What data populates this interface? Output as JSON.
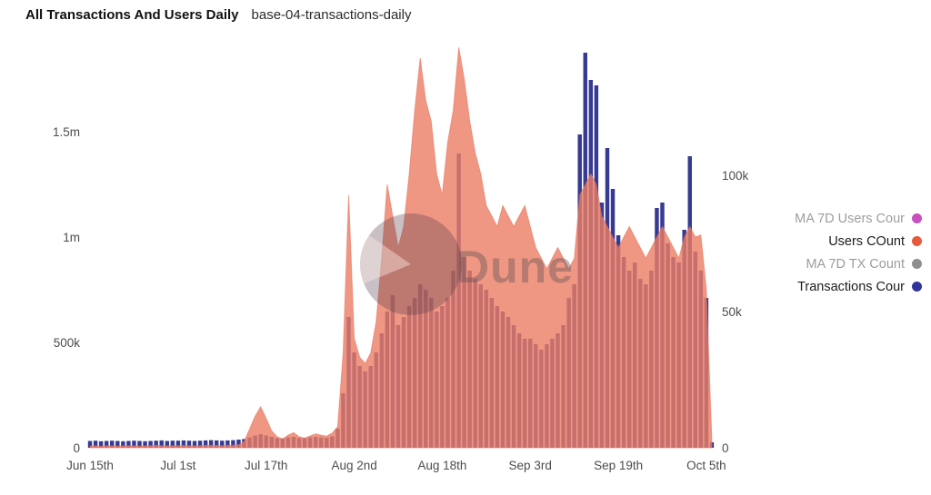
{
  "header": {
    "title": "All Transactions And Users Daily",
    "subtitle": "base-04-transactions-daily"
  },
  "watermark": {
    "text": "Dune"
  },
  "legend": {
    "items": [
      {
        "label": "MA 7D Users Cour",
        "color": "#c750bd",
        "muted": true
      },
      {
        "label": "Users COunt",
        "color": "#e55a3c",
        "muted": false
      },
      {
        "label": "MA 7D TX Count",
        "color": "#8e8e8e",
        "muted": true
      },
      {
        "label": "Transactions Cour",
        "color": "#32339c",
        "muted": false
      }
    ]
  },
  "chart_data": {
    "type": "combo",
    "title": "All Transactions And Users Daily",
    "x_start": "Jun 15",
    "n_days": 114,
    "x_ticks": [
      {
        "label": "Jun 15th",
        "index": 0
      },
      {
        "label": "Jul 1st",
        "index": 16
      },
      {
        "label": "Jul 17th",
        "index": 32
      },
      {
        "label": "Aug 2nd",
        "index": 48
      },
      {
        "label": "Aug 18th",
        "index": 64
      },
      {
        "label": "Sep 3rd",
        "index": 80
      },
      {
        "label": "Sep 19th",
        "index": 96
      },
      {
        "label": "Oct 5th",
        "index": 112
      }
    ],
    "left_axis": {
      "unit": "thousands",
      "ticks": [
        {
          "label": "0",
          "value": 0
        },
        {
          "label": "500k",
          "value": 500
        },
        {
          "label": "1m",
          "value": 1000
        },
        {
          "label": "1.5m",
          "value": 1500
        }
      ]
    },
    "right_axis": {
      "unit": "thousands",
      "ticks": [
        {
          "label": "0",
          "value": 0
        },
        {
          "label": "50k",
          "value": 50
        },
        {
          "label": "100k",
          "value": 100
        }
      ]
    },
    "series": [
      {
        "name": "Users COunt",
        "type": "area",
        "axis": "left",
        "color": "#eb7d64",
        "opacity": 0.8,
        "values_thousands": [
          8,
          9,
          8,
          10,
          9,
          8,
          9,
          10,
          9,
          8,
          9,
          10,
          11,
          10,
          9,
          10,
          10,
          11,
          10,
          9,
          10,
          11,
          12,
          11,
          10,
          11,
          12,
          14,
          30,
          90,
          150,
          195,
          140,
          80,
          52,
          42,
          60,
          72,
          52,
          46,
          56,
          66,
          60,
          55,
          70,
          100,
          450,
          1200,
          520,
          430,
          400,
          450,
          600,
          900,
          1250,
          1100,
          950,
          1050,
          1300,
          1600,
          1850,
          1650,
          1550,
          1300,
          1200,
          1450,
          1600,
          1900,
          1750,
          1550,
          1400,
          1300,
          1150,
          1100,
          1050,
          1150,
          1100,
          1050,
          1100,
          1150,
          1050,
          950,
          900,
          850,
          900,
          950,
          900,
          850,
          900,
          1200,
          1250,
          1300,
          1250,
          1100,
          1050,
          1000,
          950,
          1000,
          1050,
          1000,
          950,
          900,
          950,
          1000,
          1050,
          1000,
          950,
          900,
          1000,
          1050,
          1000,
          1010,
          750,
          30
        ]
      },
      {
        "name": "Transactions Cour",
        "type": "bar",
        "axis": "right",
        "color": "#363a92",
        "values_thousands": [
          2.5,
          2.6,
          2.4,
          2.5,
          2.6,
          2.5,
          2.4,
          2.5,
          2.6,
          2.5,
          2.4,
          2.5,
          2.6,
          2.7,
          2.5,
          2.6,
          2.6,
          2.7,
          2.6,
          2.5,
          2.6,
          2.7,
          2.8,
          2.7,
          2.6,
          2.7,
          2.8,
          3,
          3.2,
          3.8,
          4.5,
          5,
          4.5,
          4,
          3.5,
          3.4,
          3.8,
          4,
          3.6,
          3.5,
          3.8,
          4,
          3.8,
          3.7,
          4.2,
          7,
          20,
          48,
          35,
          30,
          28,
          30,
          35,
          42,
          50,
          56,
          45,
          48,
          52,
          55,
          60,
          58,
          55,
          50,
          52,
          55,
          65,
          108,
          70,
          65,
          62,
          60,
          58,
          55,
          52,
          50,
          48,
          45,
          42,
          40,
          40,
          38,
          36,
          38,
          40,
          42,
          45,
          55,
          60,
          115,
          145,
          135,
          133,
          90,
          110,
          95,
          78,
          70,
          65,
          68,
          62,
          60,
          65,
          88,
          90,
          75,
          70,
          68,
          80,
          107,
          72,
          65,
          55,
          2
        ]
      }
    ]
  }
}
